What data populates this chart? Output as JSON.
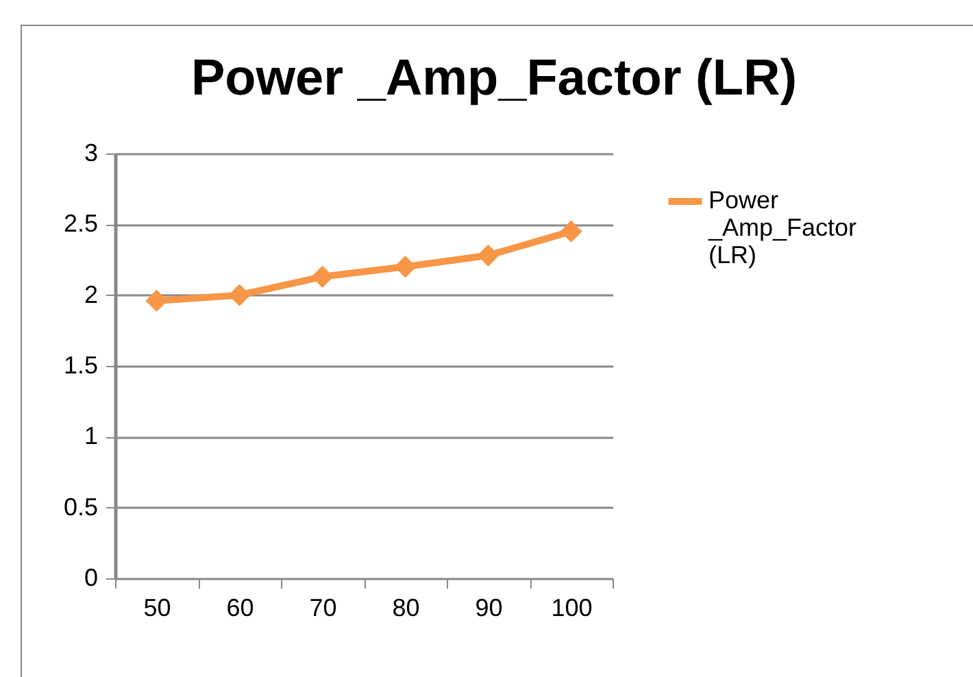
{
  "chart_data": {
    "type": "line",
    "title": "Power _Amp_Factor (LR)",
    "categories": [
      "50",
      "60",
      "70",
      "80",
      "90",
      "100"
    ],
    "series": [
      {
        "name": "Power _Amp_Factor (LR)",
        "color": "#f79646",
        "values": [
          1.96,
          2.0,
          2.13,
          2.2,
          2.28,
          2.45
        ]
      }
    ],
    "ylim": [
      0,
      3
    ],
    "yticks": [
      0,
      0.5,
      1,
      1.5,
      2,
      2.5,
      3
    ],
    "grid": "y",
    "legend": "right",
    "marker": "diamond"
  }
}
